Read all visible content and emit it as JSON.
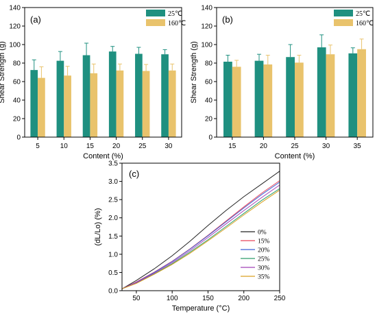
{
  "chart_data": [
    {
      "type": "bar",
      "panel_label": "(a)",
      "xlabel": "Content (%)",
      "ylabel": "Shear Strength (g)",
      "ylim": [
        0,
        140
      ],
      "yticks": [
        0,
        20,
        40,
        60,
        80,
        100,
        120,
        140
      ],
      "categories": [
        "5",
        "10",
        "15",
        "20",
        "25",
        "30"
      ],
      "legend_position": "top-right",
      "series": [
        {
          "name": "25℃",
          "color": "#1f9080",
          "values": [
            72.5,
            82.5,
            88.5,
            92.5,
            90,
            89.5
          ],
          "errors": [
            11,
            10,
            13,
            5.5,
            7,
            5
          ]
        },
        {
          "name": "160℃",
          "color": "#e9c36c",
          "values": [
            64,
            66.5,
            69,
            72,
            71.5,
            72
          ],
          "errors": [
            12,
            10,
            10,
            7,
            7,
            7
          ]
        }
      ]
    },
    {
      "type": "bar",
      "panel_label": "(b)",
      "xlabel": "Content (%)",
      "ylabel": "Shear Strength (g)",
      "ylim": [
        0,
        140
      ],
      "yticks": [
        0,
        20,
        40,
        60,
        80,
        100,
        120,
        140
      ],
      "categories": [
        "15",
        "20",
        "25",
        "30",
        "35"
      ],
      "legend_position": "top-right",
      "series": [
        {
          "name": "25℃",
          "color": "#1f9080",
          "values": [
            81.5,
            82.5,
            86.5,
            97,
            90.5
          ],
          "errors": [
            7,
            7,
            13.5,
            13.5,
            6
          ]
        },
        {
          "name": "160℃",
          "color": "#e9c36c",
          "values": [
            76,
            78.5,
            80.5,
            89.5,
            95
          ],
          "errors": [
            7,
            10,
            8,
            10,
            11
          ]
        }
      ]
    },
    {
      "type": "line",
      "panel_label": "(c)",
      "xlabel": "Temperature (°C)",
      "ylabel": "(dL/Lo) (%)",
      "xlim": [
        30,
        250
      ],
      "ylim": [
        0,
        3.5
      ],
      "xticks": [
        50,
        100,
        150,
        200,
        250
      ],
      "yticks": [
        0.0,
        0.5,
        1.0,
        1.5,
        2.0,
        2.5,
        3.0,
        3.5
      ],
      "x": [
        30,
        50,
        75,
        100,
        125,
        150,
        175,
        200,
        225,
        250
      ],
      "legend_position": "bottom-right",
      "series": [
        {
          "name": "0%",
          "color": "#222222",
          "values": [
            0.05,
            0.28,
            0.6,
            0.96,
            1.36,
            1.79,
            2.2,
            2.58,
            2.93,
            3.28
          ]
        },
        {
          "name": "15%",
          "color": "#e8455a",
          "values": [
            0.05,
            0.24,
            0.51,
            0.81,
            1.15,
            1.52,
            1.91,
            2.3,
            2.68,
            3.02
          ]
        },
        {
          "name": "20%",
          "color": "#3c5fd6",
          "values": [
            0.05,
            0.23,
            0.5,
            0.8,
            1.14,
            1.51,
            1.89,
            2.27,
            2.64,
            2.98
          ]
        },
        {
          "name": "25%",
          "color": "#2e9e6a",
          "values": [
            0.05,
            0.21,
            0.46,
            0.74,
            1.06,
            1.4,
            1.76,
            2.12,
            2.48,
            2.8
          ]
        },
        {
          "name": "30%",
          "color": "#a040b8",
          "values": [
            0.05,
            0.22,
            0.48,
            0.77,
            1.1,
            1.46,
            1.83,
            2.2,
            2.56,
            2.9
          ]
        },
        {
          "name": "35%",
          "color": "#d9a020",
          "values": [
            0.05,
            0.2,
            0.45,
            0.72,
            1.03,
            1.37,
            1.72,
            2.08,
            2.43,
            2.76
          ]
        }
      ]
    }
  ]
}
